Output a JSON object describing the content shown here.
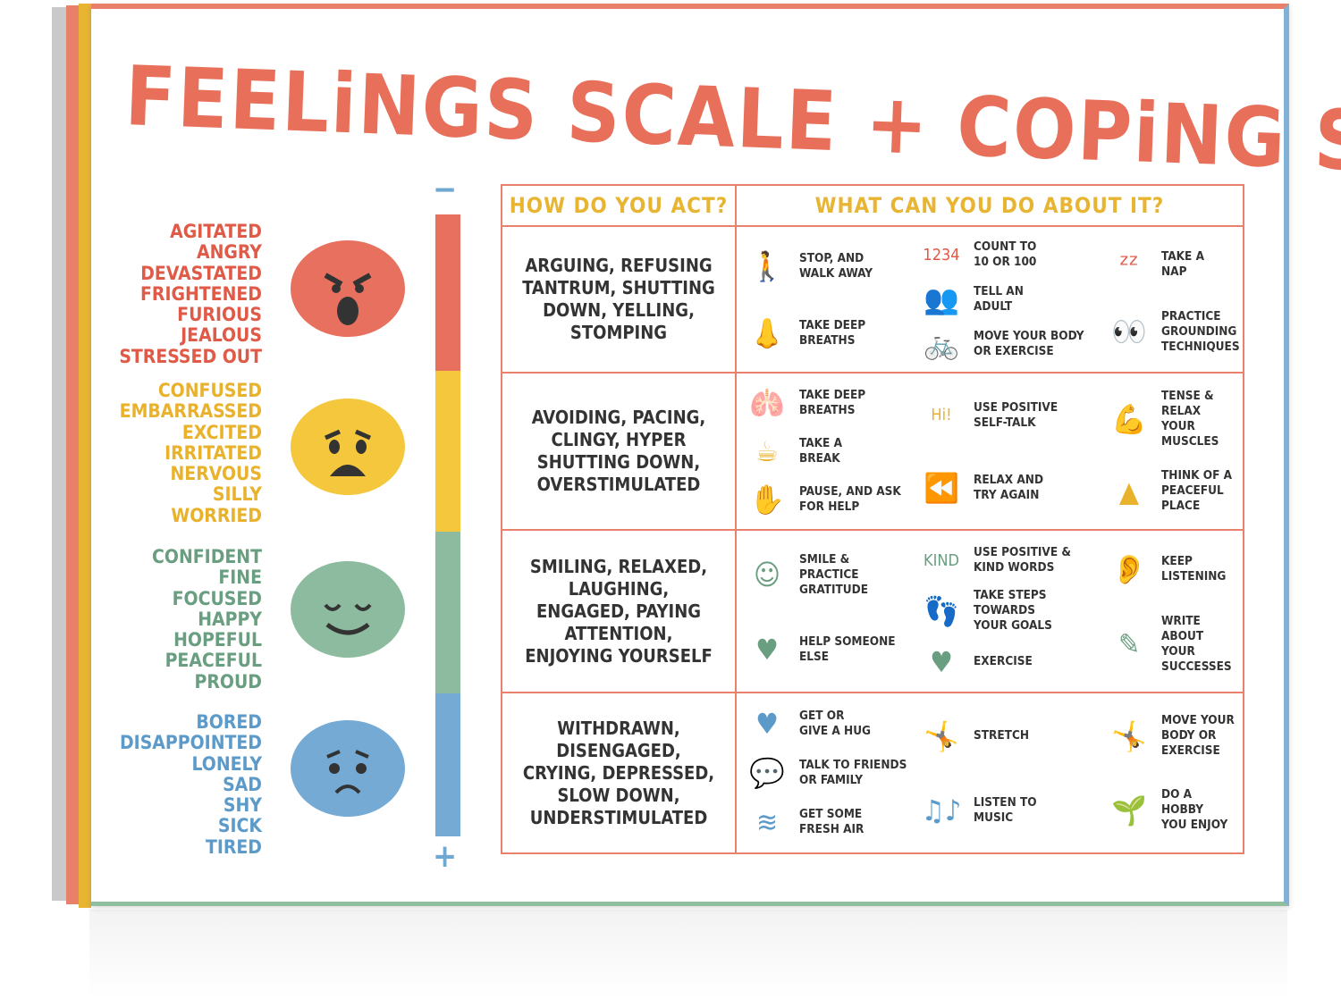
{
  "title": "FEELiNGS SCALE + COPiNG SKiLLS",
  "scale": {
    "minus": "−",
    "plus": "+"
  },
  "levels": [
    {
      "color": "#e8705f",
      "text_color": "#e05a48",
      "face": "angry",
      "feelings": "AGITATED\nANGRY\nDEVASTATED\nFRIGHTENED\nFURIOUS\nJEALOUS\nSTRESSED OUT"
    },
    {
      "color": "#f5c73c",
      "text_color": "#e9b22c",
      "face": "worried",
      "feelings": "CONFUSED\nEMBARRASSED\nEXCITED\nIRRITATED\nNERVOUS\nSILLY\nWORRIED"
    },
    {
      "color": "#8dbb9f",
      "text_color": "#6a9e80",
      "face": "calm",
      "feelings": "CONFIDENT\nFINE\nFOCUSED\nHAPPY\nHOPEFUL\nPEACEFUL\nPROUD"
    },
    {
      "color": "#74aad3",
      "text_color": "#5c9bc9",
      "face": "sad",
      "feelings": "BORED\nDISAPPOINTED\nLONELY\nSAD\nSHY\nSICK\nTIRED"
    }
  ],
  "table": {
    "header_act": "HOW DO YOU ACT?",
    "header_cope": "WHAT CAN YOU DO ABOUT IT?",
    "rows": [
      {
        "act": "ARGUING, REFUSING\nTANTRUM, SHUTTING\nDOWN, YELLING,\nSTOMPING",
        "cols": [
          [
            {
              "icon": "legs-icon",
              "g": "🚶",
              "t": "STOP, AND\nWALK AWAY"
            },
            {
              "icon": "nose-icon",
              "g": "👃",
              "t": "TAKE DEEP\nBREATHS"
            }
          ],
          [
            {
              "icon": "numbers-icon",
              "g": "1234",
              "t": "COUNT TO\n10 OR 100"
            },
            {
              "icon": "talking-people-icon",
              "g": "👥",
              "t": "TELL AN\nADULT"
            },
            {
              "icon": "bicycle-icon",
              "g": "🚲",
              "t": "MOVE YOUR BODY\nOR EXERCISE"
            }
          ],
          [
            {
              "icon": "sleeping-face-icon",
              "g": "ᶻᶻ",
              "t": "TAKE A\nNAP"
            },
            {
              "icon": "senses-icon",
              "g": "👀",
              "t": "PRACTICE\nGROUNDING\nTECHNIQUES"
            }
          ]
        ]
      },
      {
        "act": "AVOIDING, PACING,\nCLINGY, HYPER\nSHUTTING DOWN,\nOVERSTIMULATED",
        "cols": [
          [
            {
              "icon": "lungs-icon",
              "g": "🫁",
              "t": "TAKE DEEP\nBREATHS"
            },
            {
              "icon": "mug-icon",
              "g": "☕",
              "t": "TAKE A\nBREAK"
            },
            {
              "icon": "helping-hands-icon",
              "g": "✋",
              "t": "PAUSE, AND ASK\nFOR HELP"
            }
          ],
          [
            {
              "icon": "hi-icon",
              "g": "Hi!",
              "t": "USE POSITIVE\nSELF-TALK"
            },
            {
              "icon": "rewind-icon",
              "g": "⏪",
              "t": "RELAX AND\nTRY AGAIN"
            }
          ],
          [
            {
              "icon": "muscle-icon",
              "g": "💪",
              "t": "TENSE & RELAX\nYOUR MUSCLES"
            },
            {
              "icon": "mountain-icon",
              "g": "▲",
              "t": "THINK OF A\nPEACEFUL\nPLACE"
            }
          ]
        ]
      },
      {
        "act": "SMILING, RELAXED,\nLAUGHING,\nENGAGED, PAYING\nATTENTION,\nENJOYING YOURSELF",
        "cols": [
          [
            {
              "icon": "smiley-icon",
              "g": "☺",
              "t": "SMILE &\nPRACTICE\nGRATITUDE"
            },
            {
              "icon": "heart-hands-icon",
              "g": "♥",
              "t": "HELP SOMEONE\nELSE"
            }
          ],
          [
            {
              "icon": "be-kind-icon",
              "g": "KIND",
              "t": "USE POSITIVE &\nKIND WORDS"
            },
            {
              "icon": "footprints-icon",
              "g": "👣",
              "t": "TAKE STEPS TOWARDS\nYOUR GOALS"
            },
            {
              "icon": "heartbeat-icon",
              "g": "♥",
              "t": "EXERCISE"
            }
          ],
          [
            {
              "icon": "listening-girl-icon",
              "g": "👂",
              "t": "KEEP\nLISTENING"
            },
            {
              "icon": "pencil-icon",
              "g": "✎",
              "t": "WRITE ABOUT\nYOUR\nSUCCESSES"
            }
          ]
        ]
      },
      {
        "act": "WITHDRAWN,\nDISENGAGED,\nCRYING, DEPRESSED,\nSLOW DOWN,\nUNDERSTIMULATED",
        "cols": [
          [
            {
              "icon": "hugging-heart-icon",
              "g": "♥",
              "t": "GET OR\nGIVE A HUG"
            },
            {
              "icon": "speech-bubbles-icon",
              "g": "💬",
              "t": "TALK TO FRIENDS\nOR FAMILY"
            },
            {
              "icon": "wind-icon",
              "g": "≋",
              "t": "GET SOME\nFRESH AIR"
            }
          ],
          [
            {
              "icon": "stretching-person-icon",
              "g": "🤸",
              "t": "STRETCH"
            },
            {
              "icon": "music-notes-icon",
              "g": "♫♪",
              "t": "LISTEN TO\nMUSIC"
            }
          ],
          [
            {
              "icon": "kids-exercising-icon",
              "g": "🤸",
              "t": "MOVE YOUR\nBODY OR\nEXERCISE"
            },
            {
              "icon": "gardening-kids-icon",
              "g": "🌱",
              "t": "DO A HOBBY\nYOU ENJOY"
            }
          ]
        ]
      }
    ]
  }
}
